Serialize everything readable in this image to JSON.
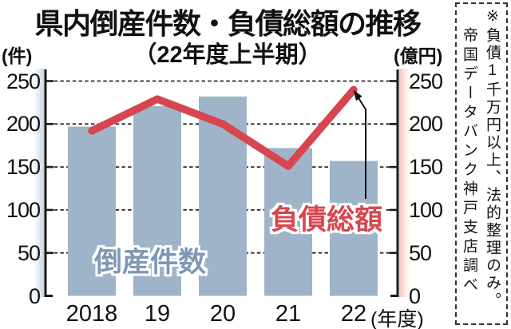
{
  "title": "県内倒産件数・負債総額の推移",
  "subtitle": "（22年度上半期）",
  "axes": {
    "left_unit": "(件)",
    "right_unit": "(億円)",
    "x_suffix": "(年度)"
  },
  "note": {
    "line1": "※負債1千万円以上、法的整理のみ。",
    "line2": "帝国データバンク神戸支店調べ"
  },
  "colors": {
    "bar": "#9FB4C9",
    "line": "#D7454E",
    "bar_label": "#7E97B4",
    "line_label": "#D6474F",
    "axis": "#1a1a1a",
    "left_strip": "#C2D1E1",
    "right_strip": "#F2C6BD"
  },
  "chart_data": {
    "type": "bar+line combo",
    "title": "県内倒産件数・負債総額の推移（22年度上半期）",
    "categories": [
      "2018",
      "19",
      "20",
      "21",
      "22"
    ],
    "x_unit": "年度",
    "series": [
      {
        "name": "倒産件数",
        "type": "bar",
        "axis": "left",
        "unit": "件",
        "values": [
          197,
          221,
          232,
          172,
          157
        ]
      },
      {
        "name": "負債総額",
        "type": "line",
        "axis": "right",
        "unit": "億円",
        "values": [
          192,
          229,
          200,
          151,
          240
        ]
      }
    ],
    "left_axis": {
      "label": "(件)",
      "min": 0,
      "max": 250,
      "ticks": [
        0,
        50,
        100,
        150,
        200,
        250
      ]
    },
    "right_axis": {
      "label": "(億円)",
      "min": 0,
      "max": 250,
      "ticks": [
        0,
        50,
        100,
        150,
        200,
        250
      ]
    },
    "grid": "dashed horizontal lines at each 50",
    "annotation": "arrow from 負債総額 label pointing to FY22 line endpoint"
  }
}
